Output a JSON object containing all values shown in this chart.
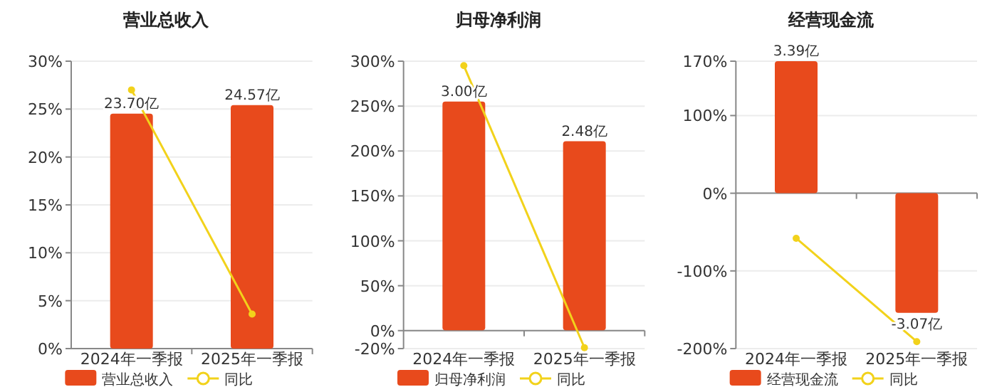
{
  "chart_data": [
    {
      "type": "bar",
      "title": "营业总收入",
      "categories": [
        "2024年一季报",
        "2025年一季报"
      ],
      "series": [
        {
          "name": "营业总收入",
          "axis": "y2",
          "color": "#e84a1c",
          "values": [
            23.7,
            24.57
          ],
          "value_labels": [
            "23.70亿",
            "24.57亿"
          ]
        },
        {
          "name": "同比",
          "type": "line",
          "color": "#f2d21b",
          "values": [
            27,
            3.6
          ],
          "marker": "circle"
        }
      ],
      "ylim": [
        0,
        30
      ],
      "yticks": [
        {
          "value": 0,
          "label": "0%"
        },
        {
          "value": 5,
          "label": "5%"
        },
        {
          "value": 10,
          "label": "10%"
        },
        {
          "value": 15,
          "label": "15%"
        },
        {
          "value": 20,
          "label": "20%"
        },
        {
          "value": 25,
          "label": "25%"
        },
        {
          "value": 30,
          "label": "30%"
        }
      ],
      "y2lim": [
        0,
        29
      ],
      "grid": "y",
      "legend": "bottom"
    },
    {
      "type": "bar",
      "title": "归母净利润",
      "categories": [
        "2024年一季报",
        "2025年一季报"
      ],
      "series": [
        {
          "name": "归母净利润",
          "axis": "y2",
          "color": "#e84a1c",
          "values": [
            3.0,
            2.48
          ],
          "value_labels": [
            "3.00亿",
            "2.48亿"
          ]
        },
        {
          "name": "同比",
          "type": "line",
          "color": "#f2d21b",
          "values": [
            295,
            -19
          ],
          "marker": "circle"
        }
      ],
      "ylim": [
        -20,
        300
      ],
      "yticks": [
        {
          "value": -20,
          "label": "-20%"
        },
        {
          "value": 0,
          "label": "0%"
        },
        {
          "value": 50,
          "label": "50%"
        },
        {
          "value": 100,
          "label": "100%"
        },
        {
          "value": 150,
          "label": "150%"
        },
        {
          "value": 200,
          "label": "200%"
        },
        {
          "value": 250,
          "label": "250%"
        },
        {
          "value": 300,
          "label": "300%"
        }
      ],
      "y2lim": [
        -0.24,
        3.53
      ],
      "grid": "y",
      "legend": "bottom"
    },
    {
      "type": "bar",
      "title": "经营现金流",
      "categories": [
        "2024年一季报",
        "2025年一季报"
      ],
      "series": [
        {
          "name": "经营现金流",
          "axis": "y2",
          "color": "#e84a1c",
          "values": [
            3.39,
            -3.07
          ],
          "value_labels": [
            "3.39亿",
            "-3.07亿"
          ]
        },
        {
          "name": "同比",
          "type": "line",
          "color": "#f2d21b",
          "values": [
            -58,
            -191
          ],
          "marker": "circle"
        }
      ],
      "ylim": [
        -200,
        170
      ],
      "yticks": [
        {
          "value": -200,
          "label": "-200%"
        },
        {
          "value": -100,
          "label": "-100%"
        },
        {
          "value": 0,
          "label": "0%"
        },
        {
          "value": 100,
          "label": "100%"
        },
        {
          "value": 170,
          "label": "170%"
        }
      ],
      "y2lim": [
        -3.99,
        3.39
      ],
      "grid": "y",
      "legend": "bottom"
    }
  ]
}
